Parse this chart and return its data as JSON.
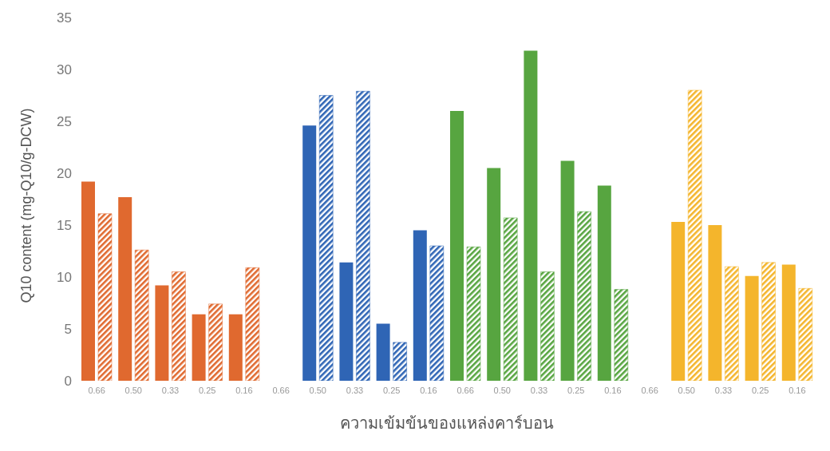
{
  "chart_data": {
    "type": "bar",
    "xlabel": "ความเข้มข้นของแหล่งคาร์บอน",
    "ylabel": "Q10 content (mg-Q10/g-DCW)",
    "categories": [
      "0.66",
      "0.50",
      "0.33",
      "0.25",
      "0.16",
      "0.66",
      "0.50",
      "0.33",
      "0.25",
      "0.16",
      "0.66",
      "0.50",
      "0.33",
      "0.25",
      "0.16",
      "0.66",
      "0.50",
      "0.33",
      "0.25",
      "0.16"
    ],
    "series": [
      {
        "values": [
          19.2,
          17.7,
          9.2,
          6.4,
          6.4,
          null,
          24.6,
          11.4,
          5.5,
          14.5,
          26.0,
          20.5,
          31.8,
          21.2,
          18.8,
          null,
          15.3,
          15.0,
          10.1,
          11.2
        ],
        "colors": [
          "#e0692f",
          "#e0692f",
          "#e0692f",
          "#e0692f",
          "#e0692f",
          "#2f65b5",
          "#2f65b5",
          "#2f65b5",
          "#2f65b5",
          "#2f65b5",
          "#57a540",
          "#57a540",
          "#57a540",
          "#57a540",
          "#57a540",
          "#f4b52c",
          "#f4b52c",
          "#f4b52c",
          "#f4b52c",
          "#f4b52c"
        ]
      },
      {
        "values": [
          16.1,
          12.6,
          10.5,
          7.4,
          10.9,
          null,
          27.5,
          27.9,
          3.7,
          13.0,
          12.9,
          15.7,
          10.5,
          16.3,
          8.8,
          null,
          28.0,
          11.0,
          11.4,
          8.9
        ],
        "colors": [
          "#e0692f",
          "#e0692f",
          "#e0692f",
          "#e0692f",
          "#e0692f",
          "#2f65b5",
          "#2f65b5",
          "#2f65b5",
          "#2f65b5",
          "#2f65b5",
          "#57a540",
          "#57a540",
          "#57a540",
          "#57a540",
          "#57a540",
          "#f4b52c",
          "#f4b52c",
          "#f4b52c",
          "#f4b52c",
          "#f4b52c"
        ]
      }
    ],
    "ylim": [
      0,
      35
    ],
    "yticks": [
      0,
      5,
      10,
      15,
      20,
      25,
      30,
      35
    ],
    "grid": false,
    "legend": false
  }
}
